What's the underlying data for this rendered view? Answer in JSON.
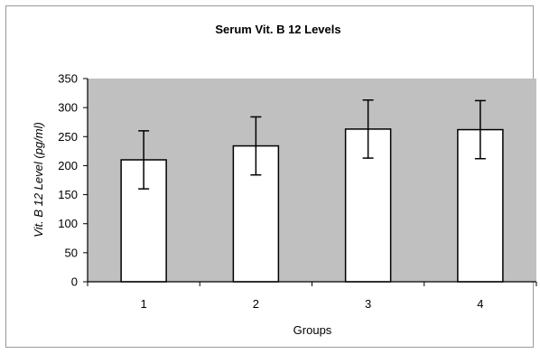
{
  "chart_data": {
    "type": "bar",
    "title": "Serum Vit. B 12 Levels",
    "xlabel": "Groups",
    "ylabel": "Vit. B 12 Level (pg/ml)",
    "categories": [
      "1",
      "2",
      "3",
      "4"
    ],
    "values": [
      210,
      234,
      263,
      262
    ],
    "error": [
      50,
      50,
      50,
      50
    ],
    "ylim": [
      0,
      350
    ],
    "yticks": [
      0,
      50,
      100,
      150,
      200,
      250,
      300,
      350
    ],
    "grid": false,
    "legend": "none",
    "colors": {
      "plot_background": "#c0c0c0",
      "bar_fill": "#ffffff",
      "bar_stroke": "#000000",
      "error_bar": "#000000"
    }
  }
}
